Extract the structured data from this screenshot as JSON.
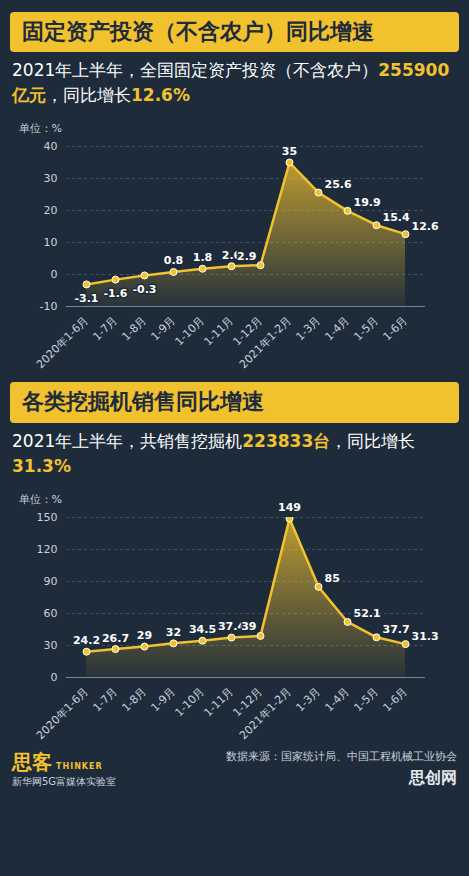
{
  "chart_data": [
    {
      "type": "area",
      "title": "固定资产投资（不含农户）同比增速",
      "subtitle": [
        "2021年上半年，全国固定资产投资（不含农户）",
        "255900亿元",
        "，同比增长",
        "12.6%"
      ],
      "y_label": "单位：%",
      "categories": [
        "2020年1-6月",
        "1-7月",
        "1-8月",
        "1-9月",
        "1-10月",
        "1-11月",
        "1-12月",
        "2021年1-2月",
        "1-3月",
        "1-4月",
        "1-5月",
        "1-6月"
      ],
      "values": [
        -3.1,
        -1.6,
        -0.3,
        0.8,
        1.8,
        2.6,
        2.9,
        35,
        25.6,
        19.9,
        15.4,
        12.6
      ],
      "color": "#f2c12e",
      "ylim": [
        -10,
        40
      ],
      "yticks": [
        -10,
        0,
        10,
        20,
        30,
        40
      ],
      "grid": true,
      "data_labels": true,
      "marker": "circle"
    },
    {
      "type": "area",
      "title": "各类挖掘机销售同比增速",
      "subtitle": [
        "2021年上半年，共销售挖掘机",
        "223833台",
        "，同比增长",
        "31.3%"
      ],
      "y_label": "单位：%",
      "categories": [
        "2020年1-6月",
        "1-7月",
        "1-8月",
        "1-9月",
        "1-10月",
        "1-11月",
        "1-12月",
        "2021年1-2月",
        "1-3月",
        "1-4月",
        "1-5月",
        "1-6月"
      ],
      "values": [
        24.2,
        26.7,
        29,
        32,
        34.5,
        37.4,
        39,
        149,
        85,
        52.1,
        37.7,
        31.3
      ],
      "color": "#f2c12e",
      "ylim": [
        0,
        150
      ],
      "yticks": [
        0,
        30,
        60,
        90,
        120,
        150
      ],
      "grid": true,
      "data_labels": true,
      "marker": "circle"
    }
  ],
  "footer": {
    "logo": "思客",
    "logo_subtitle": "THINKER",
    "lab": "新华网5G富媒体实验室",
    "source": "数据来源：国家统计局、中国工程机械工业协会",
    "watermark": "思创网"
  }
}
